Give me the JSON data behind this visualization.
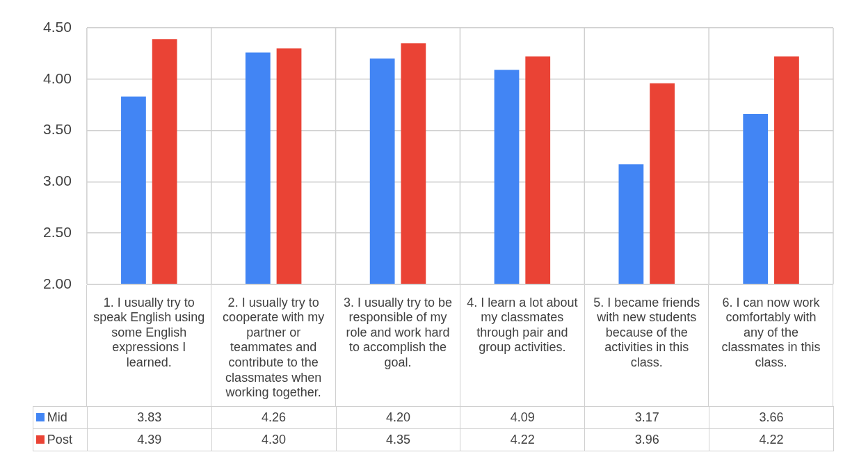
{
  "chart_data": {
    "type": "bar",
    "categories": [
      "1. I usually try to speak English using some English expressions I learned.",
      "2. I usually try to cooperate with my partner or teammates and contribute to the classmates when working together.",
      "3. I usually try to be responsible of my role and work hard to accomplish the goal.",
      "4. I learn a lot about my classmates through pair and group activities.",
      "5. I became friends with new students because of the activities in this class.",
      "6. I can now work comfortably with any of the classmates in this class."
    ],
    "series": [
      {
        "name": "Mid",
        "color": "#4285f4",
        "values": [
          3.83,
          4.26,
          4.2,
          4.09,
          3.17,
          3.66
        ],
        "value_labels": [
          "3.83",
          "4.26",
          "4.20",
          "4.09",
          "3.17",
          "3.66"
        ]
      },
      {
        "name": "Post",
        "color": "#ea4335",
        "values": [
          4.39,
          4.3,
          4.35,
          4.22,
          3.96,
          4.22
        ],
        "value_labels": [
          "4.39",
          "4.30",
          "4.35",
          "4.22",
          "3.96",
          "4.22"
        ]
      }
    ],
    "ylim": [
      2,
      4.5
    ],
    "yticks": [
      {
        "value": 2,
        "label": "2.00"
      },
      {
        "value": 2.5,
        "label": "2.50"
      },
      {
        "value": 3,
        "label": "3.00"
      },
      {
        "value": 3.5,
        "label": "3.50"
      },
      {
        "value": 4,
        "label": "4.00"
      },
      {
        "value": 4.5,
        "label": "4.50"
      }
    ],
    "grid": true,
    "legend": "bottom left"
  }
}
